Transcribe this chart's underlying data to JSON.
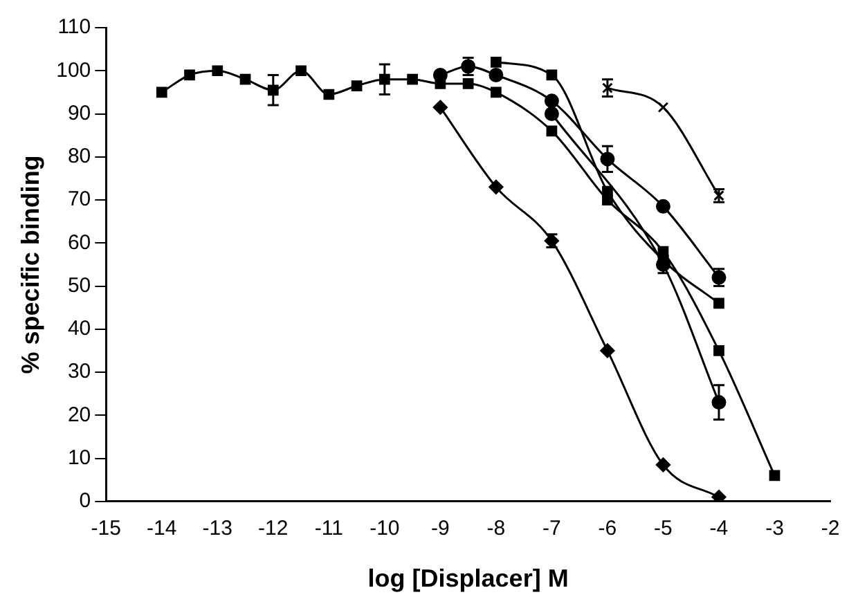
{
  "chart_data": {
    "type": "line",
    "xlabel": "log [Displacer] M",
    "ylabel": "% specific binding",
    "xlim": [
      -15,
      -2
    ],
    "xticks": [
      -15,
      -14,
      -13,
      -12,
      -11,
      -10,
      -9,
      -8,
      -7,
      -6,
      -5,
      -4,
      -3,
      -2
    ],
    "ylim": [
      0,
      110
    ],
    "yticks": [
      0,
      10,
      20,
      30,
      40,
      50,
      60,
      70,
      80,
      90,
      100,
      110
    ],
    "grid": false,
    "legend": false,
    "series": [
      {
        "color": "#000000",
        "marker": "square",
        "x": [
          -14,
          -13.5,
          -13,
          -12.5,
          -12,
          -11.5,
          -11,
          -10.5,
          -10,
          -9.5,
          -9,
          -8.5,
          -8,
          -7,
          -6,
          -5,
          -4,
          -3
        ],
        "values": [
          95,
          99,
          100,
          98,
          95.5,
          100,
          94.5,
          96.5,
          98,
          98,
          97,
          97,
          95,
          86,
          70,
          58,
          35,
          6
        ],
        "errors": [
          null,
          null,
          null,
          null,
          3.5,
          null,
          null,
          null,
          3.5,
          null,
          null,
          null,
          null,
          null,
          null,
          null,
          null,
          null
        ]
      },
      {
        "color": "#000000",
        "marker": "diamond",
        "x": [
          -9,
          -8,
          -7,
          -6,
          -5,
          -4
        ],
        "values": [
          91.5,
          73,
          60.5,
          35,
          8.5,
          1
        ],
        "errors": [
          null,
          null,
          1.5,
          null,
          null,
          null
        ]
      },
      {
        "color": "#000000",
        "marker": "cross",
        "x": [
          -6,
          -5,
          -4
        ],
        "values": [
          96,
          91.5,
          71
        ],
        "errors": [
          2,
          null,
          1.5
        ]
      },
      {
        "color": "#000000",
        "marker": "circle",
        "x": [
          -9,
          -8.5,
          -8,
          -7,
          -6,
          -5,
          -4
        ],
        "values": [
          99,
          101,
          99,
          93,
          79.5,
          68.5,
          52
        ],
        "errors": [
          null,
          2,
          null,
          null,
          3,
          null,
          2
        ]
      },
      {
        "color": "#000000",
        "marker": "square",
        "x": [
          -8,
          -7,
          -6,
          -5,
          -4
        ],
        "values": [
          102,
          99,
          72,
          56,
          46
        ]
      },
      {
        "color": "#000000",
        "marker": "circle",
        "x": [
          -7,
          -6,
          -5,
          -4
        ],
        "values": [
          90,
          null,
          55,
          23
        ],
        "errors": [
          null,
          null,
          2,
          4
        ]
      }
    ]
  }
}
